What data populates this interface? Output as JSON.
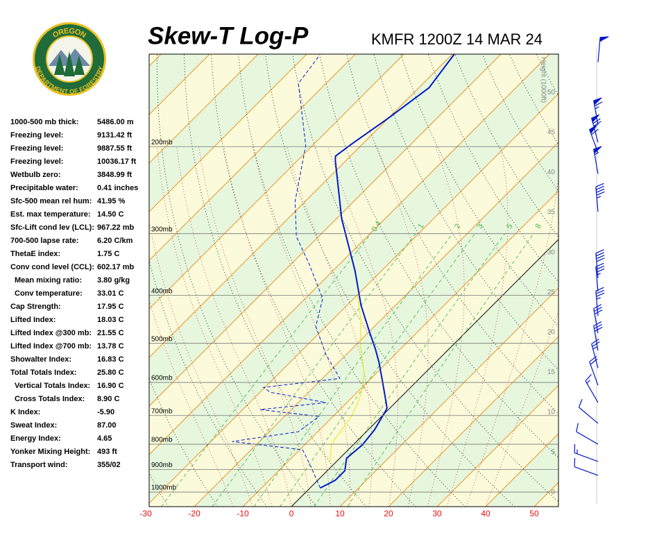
{
  "chart_data": {
    "type": "skew-t",
    "title": "Skew-T Log-P",
    "subtitle": "KMFR 1200Z 14 MAR 24",
    "logo": {
      "top": "OREGON",
      "bottom": "DEPARTMENT OF FORESTRY"
    },
    "ylim": [
      1070,
      130
    ],
    "yticks": [
      {
        "value": 200,
        "label": "200mb"
      },
      {
        "value": 300,
        "label": "300mb"
      },
      {
        "value": 400,
        "label": "400mb"
      },
      {
        "value": 500,
        "label": "500mb"
      },
      {
        "value": 600,
        "label": "600mb"
      },
      {
        "value": 700,
        "label": "700mb"
      },
      {
        "value": 800,
        "label": "800mb"
      },
      {
        "value": 900,
        "label": "900mb"
      },
      {
        "value": 1000,
        "label": "1000mb"
      }
    ],
    "xlim": [
      -29.3,
      55
    ],
    "xticks": [
      -30,
      -20,
      -10,
      0,
      10,
      20,
      30,
      40,
      50
    ],
    "xtick_color": "#e01010",
    "y2label": "Height (1000ft)",
    "y2lim": [
      -1.8,
      54.8
    ],
    "y2ticks": [
      0,
      5,
      10,
      15,
      20,
      25,
      30,
      35,
      40,
      45,
      50
    ],
    "mixing_ratio_lines": [
      0.4,
      1,
      2,
      3,
      5,
      8
    ],
    "mixing_ratio_color": "#4cb84c",
    "series": [
      {
        "color": "#0018c8",
        "style": "solid",
        "pressure": [
          981,
          947,
          905,
          854,
          803,
          748,
          685,
          676,
          602,
          547,
          514,
          474,
          419,
          357,
          280,
          213,
          209,
          196,
          175,
          152,
          130
        ],
        "temperature": [
          2.1,
          3.6,
          3.6,
          1.4,
          1.9,
          1.3,
          -0.3,
          -0.6,
          -6.6,
          -11.6,
          -15.1,
          -19.9,
          -27.1,
          -35.4,
          -48.9,
          -62.3,
          -63.1,
          -62.1,
          -60,
          -57.9,
          -59.6
        ]
      },
      {
        "color": "#0018c8",
        "style": "dashed",
        "pressure": [
          981,
          887,
          821,
          790,
          755,
          703,
          681,
          659,
          628,
          614,
          589,
          526,
          462,
          406,
          345,
          304,
          258,
          199,
          149,
          131
        ],
        "temperature": [
          2.1,
          -4.3,
          -9.4,
          -25.6,
          -14,
          -12.9,
          -26.4,
          -14.3,
          -27.9,
          -30.3,
          -16.4,
          -24.3,
          -32.1,
          -36.4,
          -46.4,
          -54.6,
          -62.1,
          -71.4,
          -85.7,
          -87.1
        ]
      },
      {
        "color": "#e8e800",
        "style": "solid",
        "pressure": [
          867,
          800,
          699,
          638,
          579,
          509,
          447,
          399
        ],
        "temperature": [
          -1.4,
          -4.6,
          -6.3,
          -8.6,
          -12.1,
          -18.6,
          -24.3,
          -30
        ]
      }
    ],
    "winds": {
      "color": "#0018c8",
      "pressure": [
        135,
        181,
        196,
        206,
        227,
        271,
        369,
        393,
        440,
        477,
        517,
        561,
        608,
        659,
        726,
        800,
        867,
        925
      ],
      "direction": [
        5,
        350,
        345,
        340,
        350,
        355,
        355,
        355,
        355,
        350,
        350,
        345,
        340,
        330,
        310,
        300,
        290,
        290
      ],
      "speed": [
        50,
        65,
        70,
        60,
        55,
        45,
        40,
        35,
        35,
        30,
        30,
        25,
        20,
        15,
        10,
        10,
        15,
        10
      ]
    },
    "indices": [
      {
        "label": "1000-500 mb thick:",
        "value": "5486.00 m"
      },
      {
        "label": "Freezing level:",
        "value": "9131.42 ft"
      },
      {
        "label": "Freezing level:",
        "value": "9887.55 ft"
      },
      {
        "label": "Freezing level:",
        "value": "10036.17 ft"
      },
      {
        "label": "Wetbulb zero:",
        "value": "3848.99 ft"
      },
      {
        "label": "Precipitable water:",
        "value": "0.41 inches"
      },
      {
        "label": "Sfc-500 mean rel hum:",
        "value": "41.95 %"
      },
      {
        "label": "Est. max temperature:",
        "value": "14.50 C"
      },
      {
        "label": "Sfc-Lift cond lev (LCL):",
        "value": "967.22 mb"
      },
      {
        "label": "700-500 lapse rate:",
        "value": "6.20 C/km"
      },
      {
        "label": "ThetaE index:",
        "value": "1.75 C"
      },
      {
        "label": "Conv cond level (CCL):",
        "value": "602.17 mb"
      },
      {
        "label": "Mean mixing ratio:",
        "value": "3.80 g/kg",
        "indent": true
      },
      {
        "label": "Conv temperature:",
        "value": "33.01 C",
        "indent": true
      },
      {
        "label": "Cap Strength:",
        "value": "17.95 C"
      },
      {
        "label": "Lifted Index:",
        "value": "18.03 C"
      },
      {
        "label": "Lifted Index @300 mb:",
        "value": "21.55 C"
      },
      {
        "label": "Lifted Index @700 mb:",
        "value": "13.78 C"
      },
      {
        "label": "Showalter Index:",
        "value": "16.83 C"
      },
      {
        "label": "Total Totals Index:",
        "value": "25.80 C"
      },
      {
        "label": "Vertical Totals Index:",
        "value": "16.90 C",
        "indent": true
      },
      {
        "label": "Cross Totals Index:",
        "value": "8.90 C",
        "indent": true
      },
      {
        "label": "K Index:",
        "value": "-5.90"
      },
      {
        "label": "Sweat Index:",
        "value": "87.00"
      },
      {
        "label": "Energy Index:",
        "value": "4.65"
      },
      {
        "label": "Yonker Mixing Height:",
        "value": "493 ft"
      },
      {
        "label": "Transport wind:",
        "value": "355/02"
      }
    ]
  }
}
